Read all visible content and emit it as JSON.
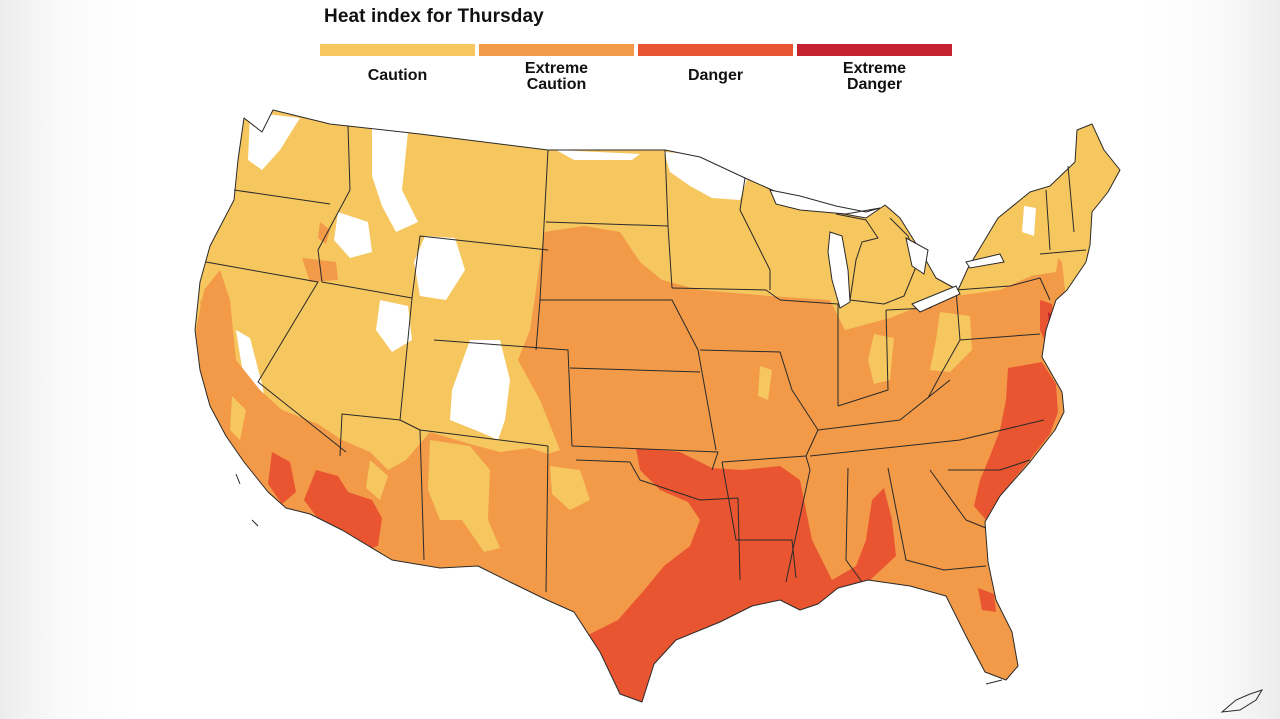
{
  "title": "Heat index for Thursday",
  "legend": [
    {
      "label": "Caution",
      "color": "#f6c65f"
    },
    {
      "label": "Extreme\nCaution",
      "color": "#f29a48"
    },
    {
      "label": "Danger",
      "color": "#e95530"
    },
    {
      "label": "Extreme\nDanger",
      "color": "#c3222e"
    }
  ],
  "map": {
    "region": "Contiguous United States",
    "no_advisory_color": "#ffffff",
    "border_color": "#2a2a2a"
  }
}
